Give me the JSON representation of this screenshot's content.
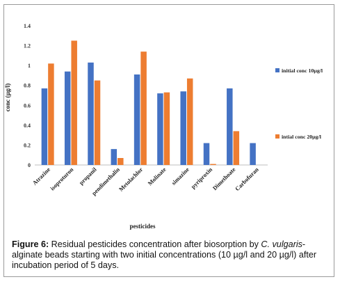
{
  "chart_data": {
    "type": "bar",
    "xlabel": "pesticides",
    "ylabel": "conc (µg/l)",
    "ylim": [
      0,
      1.4
    ],
    "yticks": [
      "0",
      "0.2",
      "0.4",
      "0.6",
      "0.8",
      "1",
      "1.2",
      "1.4"
    ],
    "grid": false,
    "legend_position": "right",
    "categories": [
      "Atrazine",
      "isoproturon",
      "propanil",
      "pendimethalin",
      "Metolachlor",
      "Molinate",
      "simazine",
      "pyriproxin",
      "Dimethoate",
      "Carbofuran"
    ],
    "series": [
      {
        "name": "initial conc 10µg/l",
        "color": "#4472C4",
        "values": [
          0.77,
          0.94,
          1.03,
          0.16,
          0.91,
          0.72,
          0.74,
          0.22,
          0.77,
          0.22
        ]
      },
      {
        "name": "intial conc 20µg/l",
        "color": "#ED7D31",
        "values": [
          1.02,
          1.25,
          0.85,
          0.07,
          1.14,
          0.73,
          0.87,
          0.01,
          0.34,
          0
        ]
      }
    ]
  },
  "caption": {
    "label": "Figure 6:",
    "text_1": " Residual pesticides concentration after biosorption by ",
    "species": "C. vulgaris",
    "text_2": "-alginate beads starting with two initial concentrations (10 µg/l and 20 µg/l) after incubation period of 5 days."
  }
}
